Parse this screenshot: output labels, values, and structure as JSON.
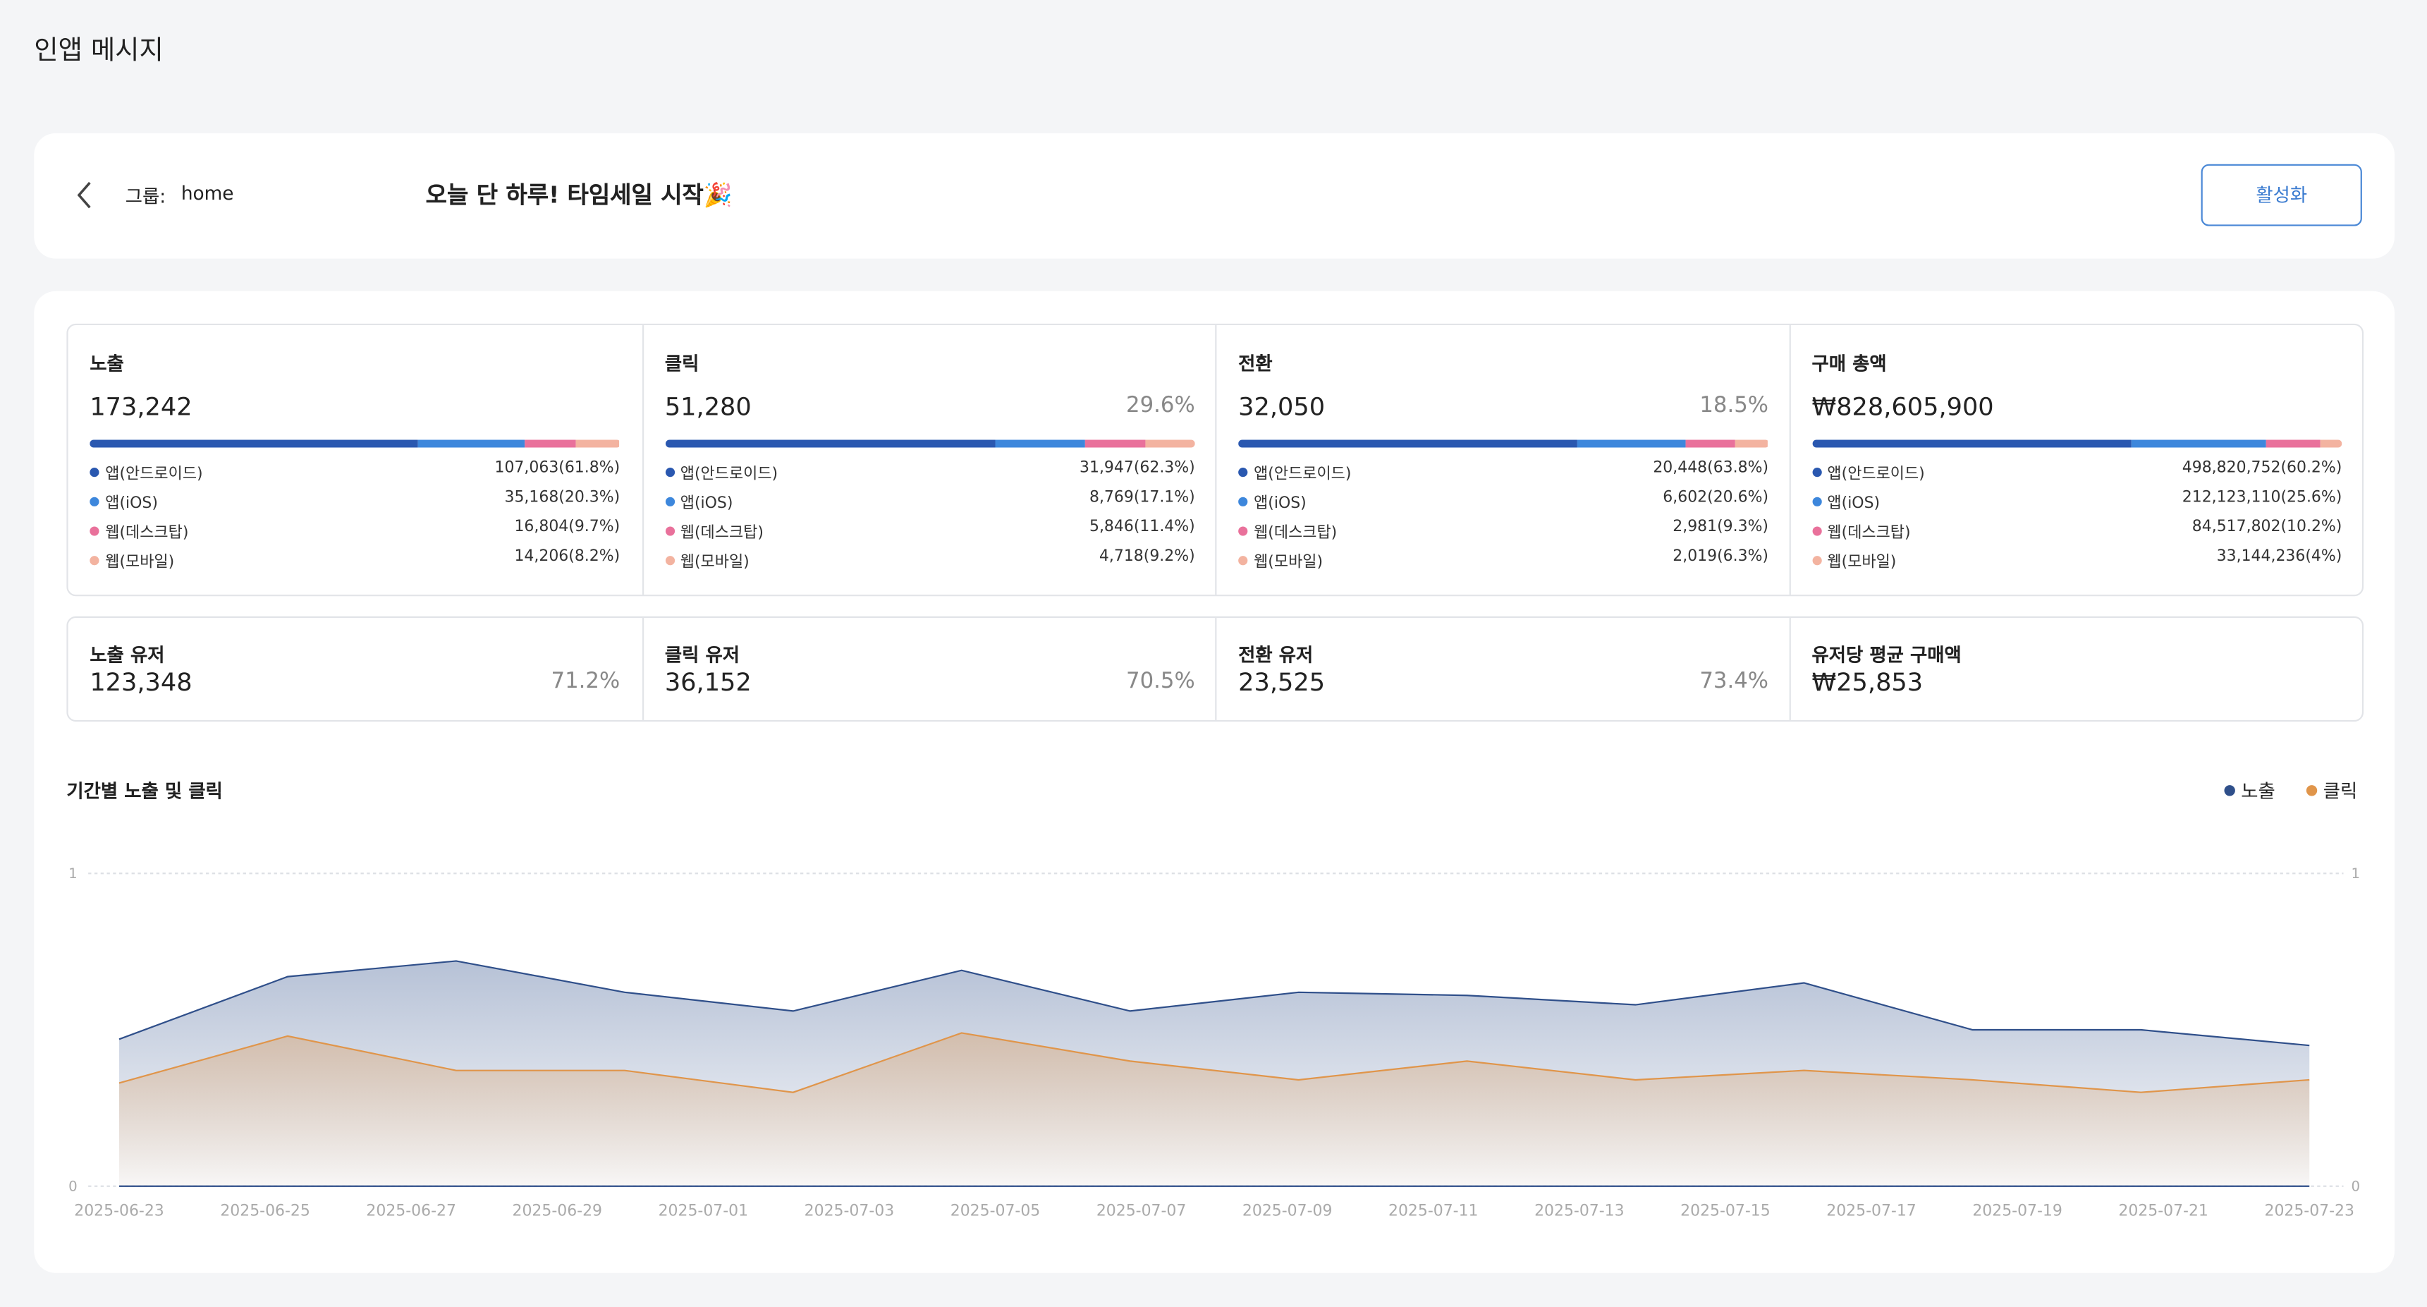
{
  "header": {
    "title": "인앱 메시지"
  },
  "message": {
    "group_label": "그룹:",
    "group": "home",
    "title": "오늘 단 하루! 타임세일 시작🎉",
    "button": "활성화"
  },
  "stats": [
    {
      "title": "노출",
      "total": "173,242",
      "segments": [
        {
          "name": "앱(안드로이드)",
          "label": "107,063(61.8%)",
          "share": 61.8
        },
        {
          "name": "앱(iOS)",
          "label": "35,168(20.3%)",
          "share": 20.3
        },
        {
          "name": "웹(데스크탑)",
          "label": "16,804(9.7%)",
          "share": 9.7
        },
        {
          "name": "웹(모바일)",
          "label": "14,206(8.2%)",
          "share": 8.2
        }
      ]
    },
    {
      "title": "클릭",
      "total": "51,280",
      "rate": "29.6%",
      "segments": [
        {
          "name": "앱(안드로이드)",
          "label": "31,947(62.3%)",
          "share": 62.3
        },
        {
          "name": "앱(iOS)",
          "label": "8,769(17.1%)",
          "share": 17.1
        },
        {
          "name": "웹(데스크탑)",
          "label": "5,846(11.4%)",
          "share": 11.4
        },
        {
          "name": "웹(모바일)",
          "label": "4,718(9.2%)",
          "share": 9.2
        }
      ]
    },
    {
      "title": "전환",
      "total": "32,050",
      "rate": "18.5%",
      "segments": [
        {
          "name": "앱(안드로이드)",
          "label": "20,448(63.8%)",
          "share": 63.8
        },
        {
          "name": "앱(iOS)",
          "label": "6,602(20.6%)",
          "share": 20.6
        },
        {
          "name": "웹(데스크탑)",
          "label": "2,981(9.3%)",
          "share": 9.3
        },
        {
          "name": "웹(모바일)",
          "label": "2,019(6.3%)",
          "share": 6.3
        }
      ]
    },
    {
      "title": "구매 총액",
      "total": "₩828,605,900",
      "segments": [
        {
          "name": "앱(안드로이드)",
          "label": "498,820,752(60.2%)",
          "share": 60.2
        },
        {
          "name": "앱(iOS)",
          "label": "212,123,110(25.6%)",
          "share": 25.6
        },
        {
          "name": "웹(데스크탑)",
          "label": "84,517,802(10.2%)",
          "share": 10.2
        },
        {
          "name": "웹(모바일)",
          "label": "33,144,236(4%)",
          "share": 4
        }
      ]
    }
  ],
  "segment_colors": [
    "#2a58b0",
    "#3d87dc",
    "#e9719b",
    "#f3b3a0"
  ],
  "users": [
    {
      "title": "노출 유저",
      "value": "123,348",
      "rate": "71.2%"
    },
    {
      "title": "클릭 유저",
      "value": "36,152",
      "rate": "70.5%"
    },
    {
      "title": "전환 유저",
      "value": "23,525",
      "rate": "73.4%"
    },
    {
      "title": "유저당 평균 구매액",
      "value": "₩25,853"
    }
  ],
  "chart_data": {
    "type": "area",
    "title": "기간별 노출 및 클릭",
    "xticks": [
      "2025-06-23",
      "2025-06-25",
      "2025-06-27",
      "2025-06-29",
      "2025-07-01",
      "2025-07-03",
      "2025-07-05",
      "2025-07-07",
      "2025-07-09",
      "2025-07-11",
      "2025-07-13",
      "2025-07-15",
      "2025-07-17",
      "2025-07-19",
      "2025-07-21",
      "2025-07-23"
    ],
    "ylim": [
      0,
      1
    ],
    "yticks": [
      0,
      1
    ],
    "y2lim": [
      0,
      1
    ],
    "y2ticks": [
      0,
      1
    ],
    "grid": true,
    "series": [
      {
        "name": "노출",
        "color": "#2f4f8a",
        "values": [
          0.47,
          0.67,
          0.72,
          0.62,
          0.56,
          0.69,
          0.56,
          0.62,
          0.61,
          0.58,
          0.65,
          0.5,
          0.5,
          0.45
        ]
      },
      {
        "name": "클릭",
        "color": "#e0954a",
        "values": [
          0.33,
          0.48,
          0.37,
          0.37,
          0.3,
          0.49,
          0.4,
          0.34,
          0.4,
          0.34,
          0.37,
          0.34,
          0.3,
          0.34
        ]
      }
    ]
  }
}
